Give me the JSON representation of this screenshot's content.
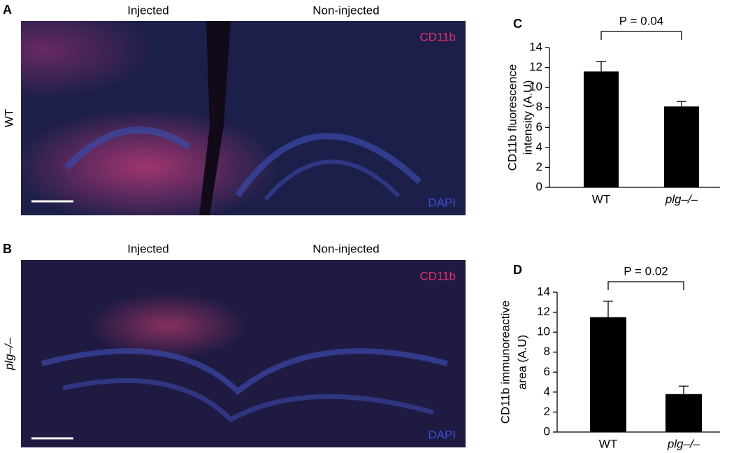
{
  "panels": [
    {
      "label": "A",
      "left_title": "Injected",
      "right_title": "Non-injected",
      "stain_top": "CD11b",
      "stain_bottom": "DAPI",
      "genotype": "WT"
    },
    {
      "label": "B",
      "left_title": "Injected",
      "right_title": "Non-injected",
      "stain_top": "CD11b",
      "stain_bottom": "DAPI",
      "genotype": "plg–/–"
    }
  ],
  "chart_data": [
    {
      "type": "bar",
      "label": "C",
      "annotation": "P = 0.04",
      "y_label": [
        "CD11b fluorescence",
        "intensity (A.U)"
      ],
      "categories": [
        "WT",
        "plg–/–"
      ],
      "values": [
        11.6,
        8.1
      ],
      "errors": [
        1.0,
        0.5
      ],
      "color": "#000000",
      "ylim": [
        0,
        14
      ],
      "yticks": [
        0,
        2,
        4,
        6,
        8,
        10,
        12,
        14
      ]
    },
    {
      "type": "bar",
      "label": "D",
      "annotation": "P = 0.02",
      "y_label": [
        "CD11b immunoreactive",
        "area (A.U)"
      ],
      "categories": [
        "WT",
        "plg–/–"
      ],
      "values": [
        11.5,
        3.8
      ],
      "errors": [
        1.6,
        0.8
      ],
      "color": "#000000",
      "ylim": [
        0,
        14
      ],
      "yticks": [
        0,
        2,
        4,
        6,
        8,
        10,
        12,
        14
      ]
    }
  ]
}
